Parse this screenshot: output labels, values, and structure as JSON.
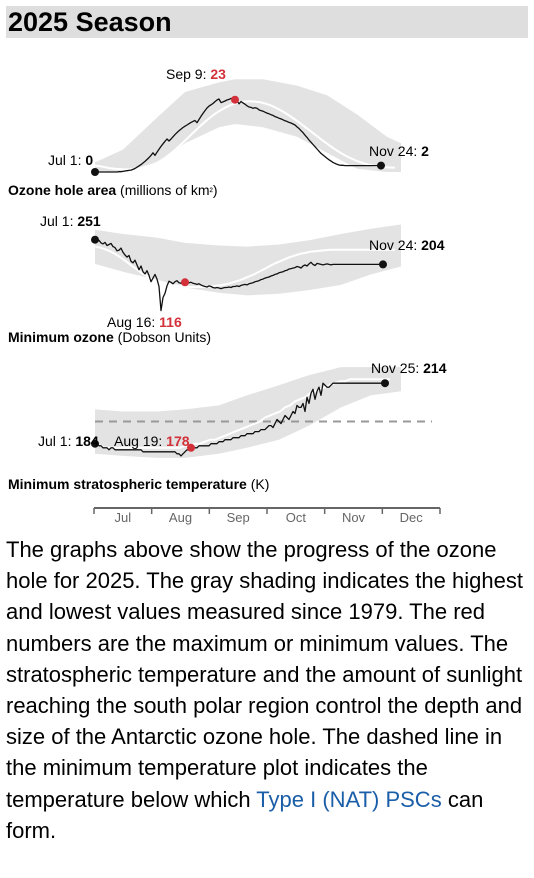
{
  "page": {
    "title": "2025 Season",
    "caption": {
      "before_link": "The graphs above show the progress of the ozone hole for 2025. The gray shading indicates the highest and lowest values measured since 1979. The red numbers are the maximum or minimum values. The stratospheric temperature and the amount of sunlight reaching the south polar region control the depth and size of the Antarctic ozone hole. The dashed line in the minimum temperature plot indicates the temperature below which",
      "link_text": "Type I (NAT) PSCs",
      "after_link": "can form."
    }
  },
  "colors": {
    "band": "#e3e3e3",
    "line": "#111111",
    "min_line": "#ffffff",
    "highlight": "#d3313a",
    "axis": "#666666",
    "dash": "#999999",
    "month_text": "#666666"
  },
  "chart_data": [
    {
      "type": "line",
      "title": "Ozone hole area",
      "unit": "(millions of km²)",
      "ylim": [
        0,
        30
      ],
      "x_axis": "day_of_year",
      "start_day": 182,
      "band": {
        "x": [
          182,
          196,
          213,
          227,
          244,
          252,
          266,
          283,
          298,
          313,
          328,
          335
        ],
        "low": [
          0,
          0,
          3,
          9,
          14,
          15,
          14,
          11,
          6,
          1,
          0,
          0
        ],
        "high": [
          3,
          7,
          17,
          25,
          28,
          29,
          29,
          27,
          24,
          18,
          11,
          9
        ]
      },
      "series": [
        {
          "values": [
            0.0,
            0.0,
            0.0,
            0.0,
            0.0,
            0.0,
            0.0,
            0.0,
            0.0,
            0.0,
            0.0,
            0.0,
            0.1,
            0.1,
            0.2,
            0.3,
            0.4,
            0.5,
            0.6,
            0.8,
            1.1,
            1.5,
            1.9,
            2.3,
            2.8,
            3.3,
            3.9,
            4.5,
            5.2,
            6.0,
            5.2,
            6.2,
            7.1,
            8.0,
            8.8,
            9.6,
            10.3,
            9.7,
            10.3,
            11.0,
            11.7,
            12.3,
            12.9,
            13.4,
            13.9,
            14.3,
            14.7,
            15.1,
            15.5,
            15.8,
            16.1,
            15.4,
            16.4,
            17.4,
            18.3,
            19.2,
            20.0,
            20.6,
            21.0,
            21.4,
            22.0,
            22.5,
            22.8,
            21.7,
            21.9,
            22.2,
            22.5,
            22.7,
            23.0,
            23.0,
            22.6,
            22.2,
            21.3,
            22.0,
            21.6,
            21.2,
            20.7,
            20.3,
            20.2,
            19.9,
            20.1,
            19.9,
            19.4,
            19.2,
            19.0,
            18.7,
            18.4,
            18.2,
            17.9,
            17.7,
            17.3,
            17.1,
            16.8,
            16.6,
            16.3,
            16.0,
            15.8,
            15.5,
            15.3,
            15.0,
            14.7,
            14.1,
            13.6,
            12.9,
            12.3,
            11.5,
            10.8,
            10.0,
            9.3,
            8.6,
            7.9,
            7.2,
            6.5,
            5.8,
            5.3,
            4.8,
            4.3,
            3.8,
            3.4,
            3.0,
            2.7,
            2.4,
            2.2,
            2.1,
            2.1,
            2.0,
            2.0,
            2.0,
            2.0,
            2.0,
            2.0,
            2.0,
            2.0,
            2.0,
            2.0,
            2.0,
            2.0,
            2.0,
            2.0,
            2.0,
            2.0,
            2.0,
            2.0,
            2.0
          ]
        },
        {
          "values": [
            2,
            1.8,
            1.5,
            1.2,
            1.0,
            0.9,
            0.8,
            0.8,
            0.9,
            1.1,
            1.4,
            1.9,
            2.6,
            3.4,
            4.4,
            5.6,
            6.9,
            8.3,
            9.8,
            11.3,
            12.8,
            14.3,
            15.7,
            17.0,
            18.2,
            19.2,
            20.1,
            20.8,
            21.4,
            21.8,
            22.0,
            22.1,
            22.0,
            21.8,
            21.4,
            20.9,
            20.2,
            19.4,
            18.5,
            17.5,
            16.4,
            15.3,
            14.1,
            12.9,
            11.7,
            10.5,
            9.3,
            8.2,
            7.1,
            6.1,
            5.2,
            4.4,
            3.7,
            3.1,
            2.6,
            2.2,
            1.9,
            1.7,
            1.5,
            1.4,
            1.3
          ]
        }
      ],
      "annotations": [
        {
          "label": "Jul 1:",
          "value": "0",
          "red": false
        },
        {
          "label": "Sep 9:",
          "value": "23",
          "red": true
        },
        {
          "label": "Nov 24:",
          "value": "2",
          "red": false
        }
      ]
    },
    {
      "type": "line",
      "title": "Minimum ozone",
      "unit": "(Dobson Units)",
      "ylim": [
        100,
        300
      ],
      "x_axis": "day_of_year",
      "start_day": 182,
      "band": {
        "x": [
          182,
          196,
          213,
          227,
          244,
          258,
          274,
          289,
          305,
          320,
          335
        ],
        "low": [
          205,
          190,
          175,
          160,
          150,
          145,
          148,
          155,
          165,
          185,
          200
        ],
        "high": [
          270,
          262,
          255,
          245,
          240,
          238,
          242,
          250,
          262,
          272,
          280
        ]
      },
      "series": [
        {
          "values": [
            251,
            248,
            250,
            245,
            243,
            246,
            240,
            242,
            244,
            238,
            236,
            230,
            231,
            235,
            227,
            222,
            218,
            221,
            210,
            207,
            212,
            203,
            194,
            201,
            190,
            186,
            192,
            183,
            171,
            178,
            185,
            176,
            162,
            116,
            141,
            149,
            163,
            172,
            170,
            167,
            171,
            173,
            169,
            168,
            172,
            170,
            168,
            169,
            170,
            168,
            167,
            166,
            167,
            165,
            163,
            162,
            161,
            163,
            162,
            160,
            159,
            160,
            159,
            158,
            159,
            160,
            160,
            161,
            160,
            162,
            162,
            163,
            162,
            164,
            165,
            166,
            165,
            167,
            168,
            169,
            171,
            172,
            173,
            175,
            176,
            178,
            179,
            180,
            182,
            183,
            185,
            186,
            188,
            189,
            190,
            192,
            193,
            195,
            196,
            197,
            198,
            200,
            199,
            197,
            201,
            203,
            201,
            205,
            208,
            204,
            202,
            206,
            205,
            204,
            203,
            204,
            205,
            204,
            203,
            204,
            204,
            204,
            204,
            204,
            204,
            204,
            204,
            204,
            204,
            204,
            204,
            204,
            204,
            204,
            204,
            204,
            204,
            204,
            204,
            204,
            204,
            204,
            204,
            204,
            204
          ]
        },
        {
          "values": [
            238,
            236,
            233,
            229,
            224,
            218,
            211,
            204,
            197,
            190,
            184,
            178,
            173,
            170,
            167,
            165,
            164,
            163,
            162,
            161,
            161,
            161,
            161,
            162,
            163,
            164,
            166,
            168,
            171,
            174,
            178,
            182,
            186,
            191,
            196,
            201,
            206,
            210,
            214,
            218,
            221,
            224,
            226,
            228,
            229,
            230,
            231,
            232,
            232,
            232,
            232,
            232,
            232,
            232,
            232,
            232,
            232,
            232,
            232,
            232,
            232
          ]
        }
      ],
      "annotations": [
        {
          "label": "Jul 1:",
          "value": "251",
          "red": false
        },
        {
          "label": "Aug 16:",
          "value": "116",
          "red": true
        },
        {
          "label": "Nov 24:",
          "value": "204",
          "red": false
        }
      ]
    },
    {
      "type": "line",
      "title": "Minimum stratospheric temperature",
      "unit": "(K)",
      "ylim": [
        170,
        225
      ],
      "threshold": 195,
      "x_axis": "day_of_year",
      "start_day": 182,
      "band": {
        "x": [
          182,
          196,
          213,
          227,
          244,
          258,
          274,
          289,
          305,
          320,
          335
        ],
        "low": [
          179,
          178,
          177,
          177,
          179,
          182,
          186,
          193,
          202,
          208,
          210
        ],
        "high": [
          201,
          200,
          200,
          201,
          203,
          208,
          213,
          218,
          222,
          222,
          222
        ]
      },
      "series": [
        {
          "values": [
            184,
            184,
            183,
            183,
            182,
            182,
            182,
            181,
            182,
            182,
            181,
            181,
            181,
            181,
            181,
            181,
            181,
            181,
            181,
            181,
            181,
            181,
            181,
            181,
            180,
            180,
            180,
            180,
            180,
            180,
            180,
            180,
            180,
            180,
            180,
            180,
            180,
            180,
            180,
            180,
            180,
            179,
            179,
            178,
            179,
            180,
            181,
            181,
            182,
            182,
            182,
            182,
            183,
            183,
            183,
            183,
            183,
            183,
            184,
            184,
            184,
            184,
            185,
            185,
            185,
            186,
            186,
            186,
            186,
            187,
            187,
            187,
            187,
            188,
            188,
            188,
            189,
            189,
            189,
            189,
            190,
            190,
            190,
            191,
            191,
            191,
            192,
            193,
            193,
            192,
            194,
            196,
            195,
            194,
            196,
            198,
            197,
            196,
            198,
            200,
            199,
            203,
            202,
            202,
            204,
            200,
            207,
            204,
            209,
            211,
            206,
            210,
            212,
            208,
            214,
            213,
            212,
            212,
            213,
            214,
            214,
            214,
            214,
            214,
            214,
            214,
            214,
            214,
            214,
            214,
            214,
            214,
            214,
            214,
            214,
            214,
            214,
            214,
            214,
            214,
            214,
            214,
            214,
            214,
            214,
            214
          ]
        },
        {
          "values": [
            183,
            183,
            182,
            182,
            182,
            182,
            182,
            182,
            182,
            182,
            182,
            182,
            182,
            182,
            182,
            182,
            182,
            182,
            183,
            183,
            184,
            184,
            185,
            186,
            186,
            187,
            188,
            189,
            190,
            191,
            192,
            193,
            194,
            195,
            197,
            198,
            199,
            200,
            202,
            203,
            205,
            206,
            207,
            209,
            210,
            211,
            212,
            213,
            214,
            215,
            215,
            216,
            216,
            216,
            216,
            216,
            216,
            216,
            216,
            216
          ]
        }
      ],
      "annotations": [
        {
          "label": "Jul 1:",
          "value": "184",
          "red": false
        },
        {
          "label": "Aug 19:",
          "value": "178",
          "red": true
        },
        {
          "label": "Nov 25:",
          "value": "214",
          "red": false
        }
      ]
    }
  ],
  "x_axis": {
    "months": [
      "Jul",
      "Aug",
      "Sep",
      "Oct",
      "Nov",
      "Dec"
    ]
  }
}
